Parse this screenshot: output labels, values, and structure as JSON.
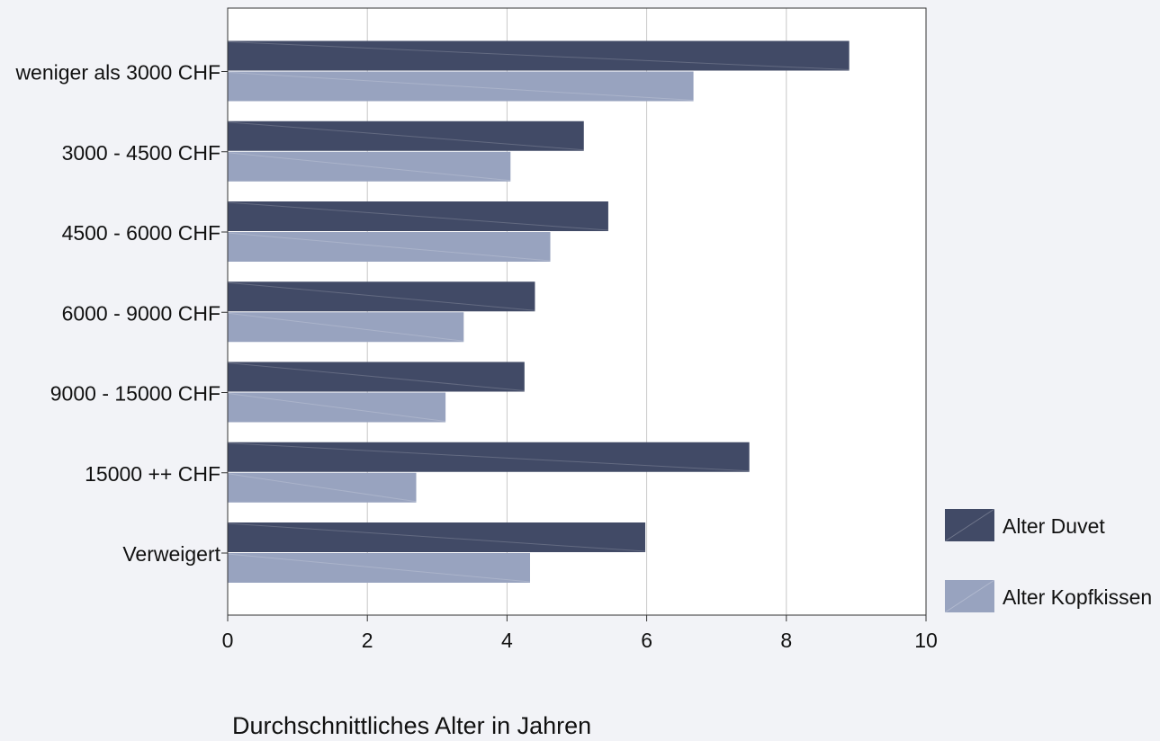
{
  "chart_data": {
    "type": "bar",
    "orientation": "horizontal",
    "title": "",
    "xlabel": "Durchschnittliches Alter in Jahren",
    "ylabel": "",
    "xlim": [
      0,
      10
    ],
    "x_ticks": [
      0,
      2,
      4,
      6,
      8,
      10
    ],
    "grid": true,
    "legend_position": "right-bottom",
    "categories": [
      "weniger als 3000 CHF",
      "3000 - 4500 CHF",
      "4500 - 6000 CHF",
      "6000 - 9000 CHF",
      "9000 - 15000 CHF",
      "15000 ++ CHF",
      "Verweigert"
    ],
    "series": [
      {
        "name": "Alter Duvet",
        "color": "#414a66",
        "values": [
          8.9,
          5.1,
          5.45,
          4.4,
          4.25,
          7.47,
          5.98
        ]
      },
      {
        "name": "Alter Kopfkissen",
        "color": "#98a3bf",
        "values": [
          6.67,
          4.05,
          4.62,
          3.38,
          3.12,
          2.7,
          4.33
        ]
      }
    ]
  }
}
